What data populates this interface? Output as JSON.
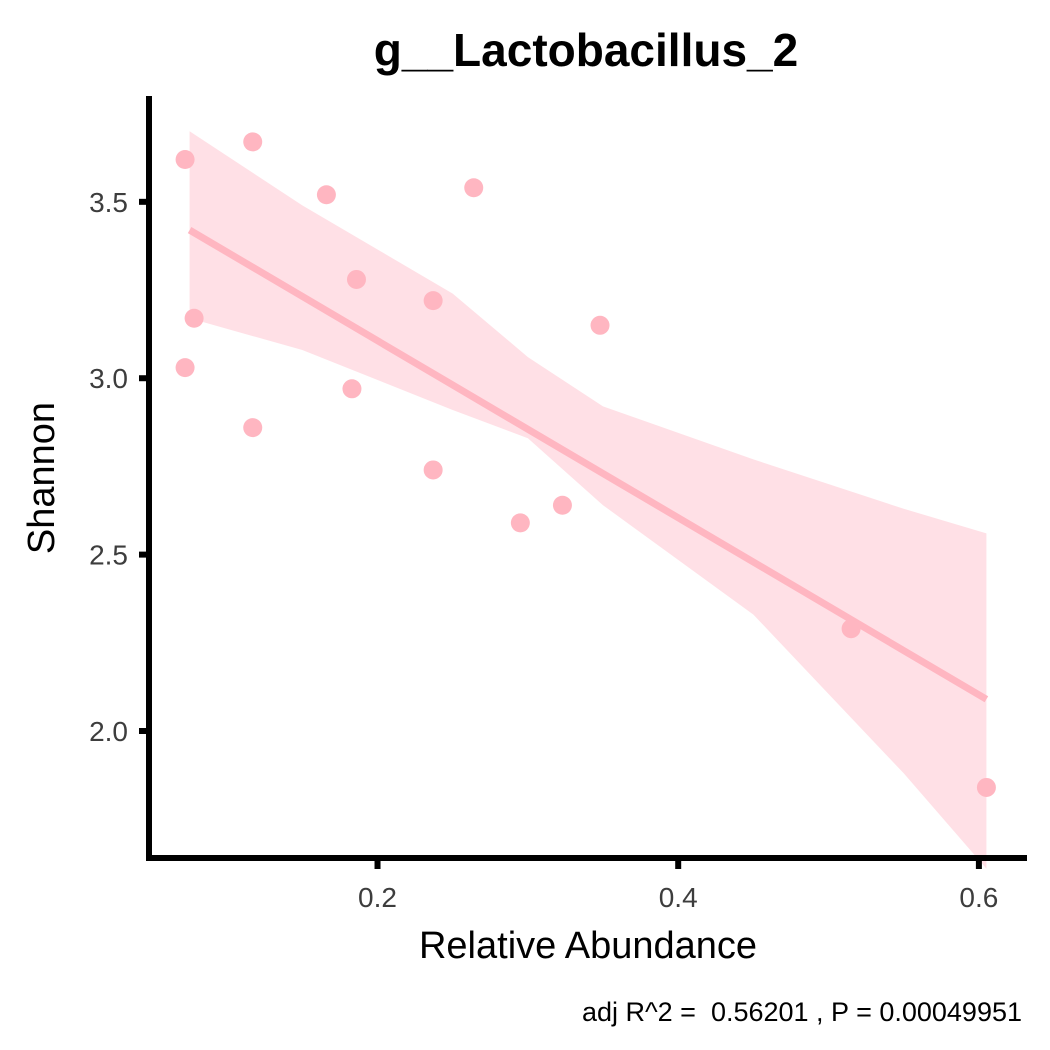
{
  "chart_data": {
    "type": "scatter",
    "title": "g__Lactobacillus_2",
    "xlabel": "Relative Abundance",
    "ylabel": "Shannon",
    "xlim": [
      0.048,
      0.632
    ],
    "ylim": [
      1.64,
      3.8
    ],
    "x_ticks": [
      0.2,
      0.4,
      0.6
    ],
    "x_tick_labels": [
      "0.2",
      "0.4",
      "0.6"
    ],
    "y_ticks": [
      2.0,
      2.5,
      3.0,
      3.5
    ],
    "y_tick_labels": [
      "2.0",
      "2.5",
      "3.0",
      "3.5"
    ],
    "grid": false,
    "legend": "none",
    "annotation": "adj R^2 =  0.56201 , P = 0.00049951",
    "colors": {
      "points": "#ffb6c1",
      "fit_line": "#ffb6c1",
      "confidence_band": "#ffdde3",
      "axis": "#000000"
    },
    "points": [
      {
        "x": 0.072,
        "y": 3.62
      },
      {
        "x": 0.072,
        "y": 3.03
      },
      {
        "x": 0.078,
        "y": 3.17
      },
      {
        "x": 0.117,
        "y": 3.67
      },
      {
        "x": 0.117,
        "y": 2.86
      },
      {
        "x": 0.166,
        "y": 3.52
      },
      {
        "x": 0.186,
        "y": 3.28
      },
      {
        "x": 0.183,
        "y": 2.97
      },
      {
        "x": 0.237,
        "y": 3.22
      },
      {
        "x": 0.237,
        "y": 2.74
      },
      {
        "x": 0.264,
        "y": 3.54
      },
      {
        "x": 0.295,
        "y": 2.59
      },
      {
        "x": 0.323,
        "y": 2.64
      },
      {
        "x": 0.348,
        "y": 3.15
      },
      {
        "x": 0.515,
        "y": 2.29
      },
      {
        "x": 0.605,
        "y": 1.84
      }
    ],
    "fit": {
      "x_start": 0.075,
      "y_start": 3.42,
      "x_end": 0.605,
      "y_end": 2.09
    },
    "confidence_band": {
      "x": [
        0.075,
        0.15,
        0.25,
        0.3,
        0.35,
        0.45,
        0.55,
        0.605
      ],
      "upper": [
        3.7,
        3.49,
        3.24,
        3.06,
        2.92,
        2.77,
        2.63,
        2.56
      ],
      "lower": [
        3.17,
        3.08,
        2.91,
        2.83,
        2.64,
        2.33,
        1.88,
        1.61
      ]
    }
  }
}
